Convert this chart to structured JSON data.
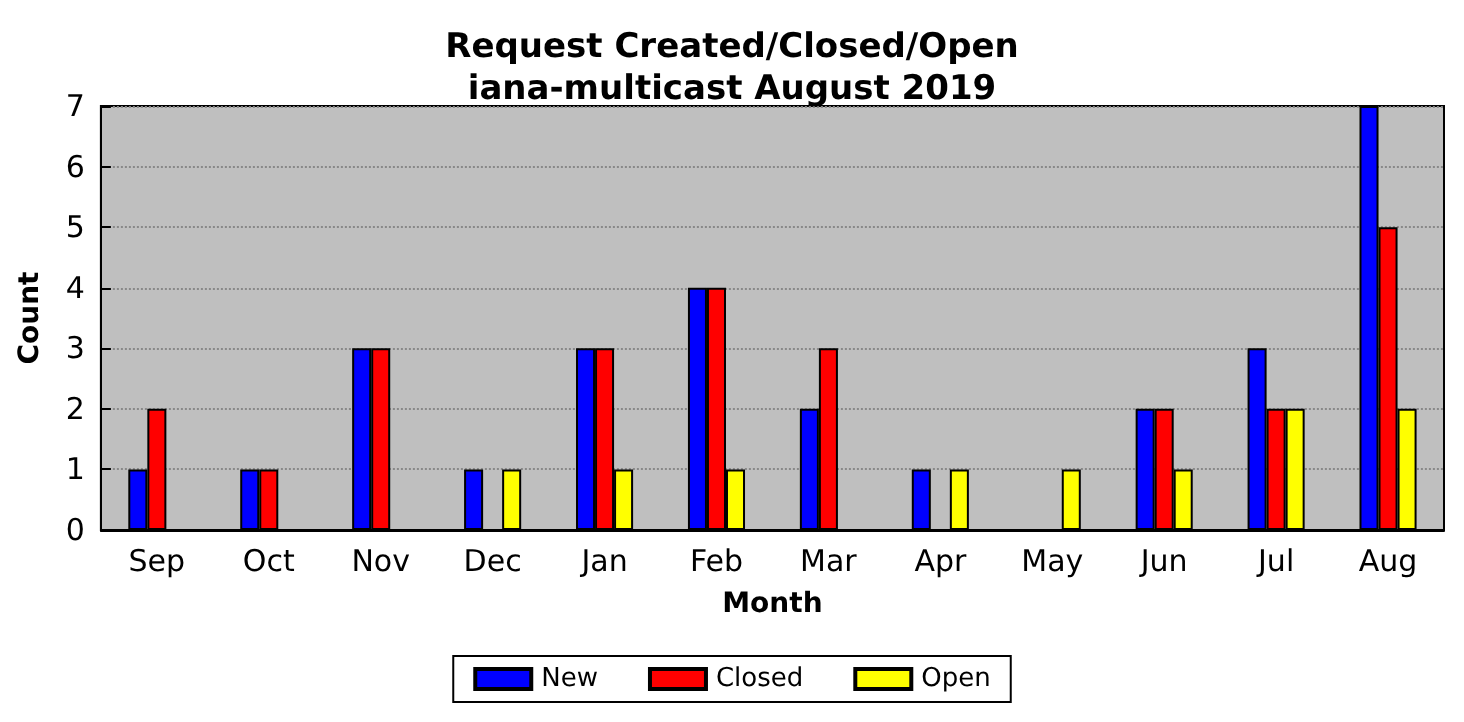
{
  "chart_data": {
    "type": "bar",
    "title": "Request Created/Closed/Open\niana-multicast August 2019",
    "xlabel": "Month",
    "ylabel": "Count",
    "categories": [
      "Sep",
      "Oct",
      "Nov",
      "Dec",
      "Jan",
      "Feb",
      "Mar",
      "Apr",
      "May",
      "Jun",
      "Jul",
      "Aug"
    ],
    "series": [
      {
        "name": "New",
        "color": "#0000ff",
        "values": [
          1,
          1,
          3,
          1,
          3,
          4,
          2,
          1,
          0,
          2,
          3,
          7
        ]
      },
      {
        "name": "Closed",
        "color": "#ff0000",
        "values": [
          2,
          1,
          3,
          0,
          3,
          4,
          3,
          0,
          0,
          2,
          2,
          5
        ]
      },
      {
        "name": "Open",
        "color": "#ffff00",
        "values": [
          0,
          0,
          0,
          1,
          1,
          1,
          0,
          1,
          1,
          1,
          2,
          2
        ]
      }
    ],
    "ylim": [
      0,
      7
    ],
    "yticks": [
      0,
      1,
      2,
      3,
      4,
      5,
      6,
      7
    ],
    "grid": "y",
    "legend": "bottom"
  }
}
